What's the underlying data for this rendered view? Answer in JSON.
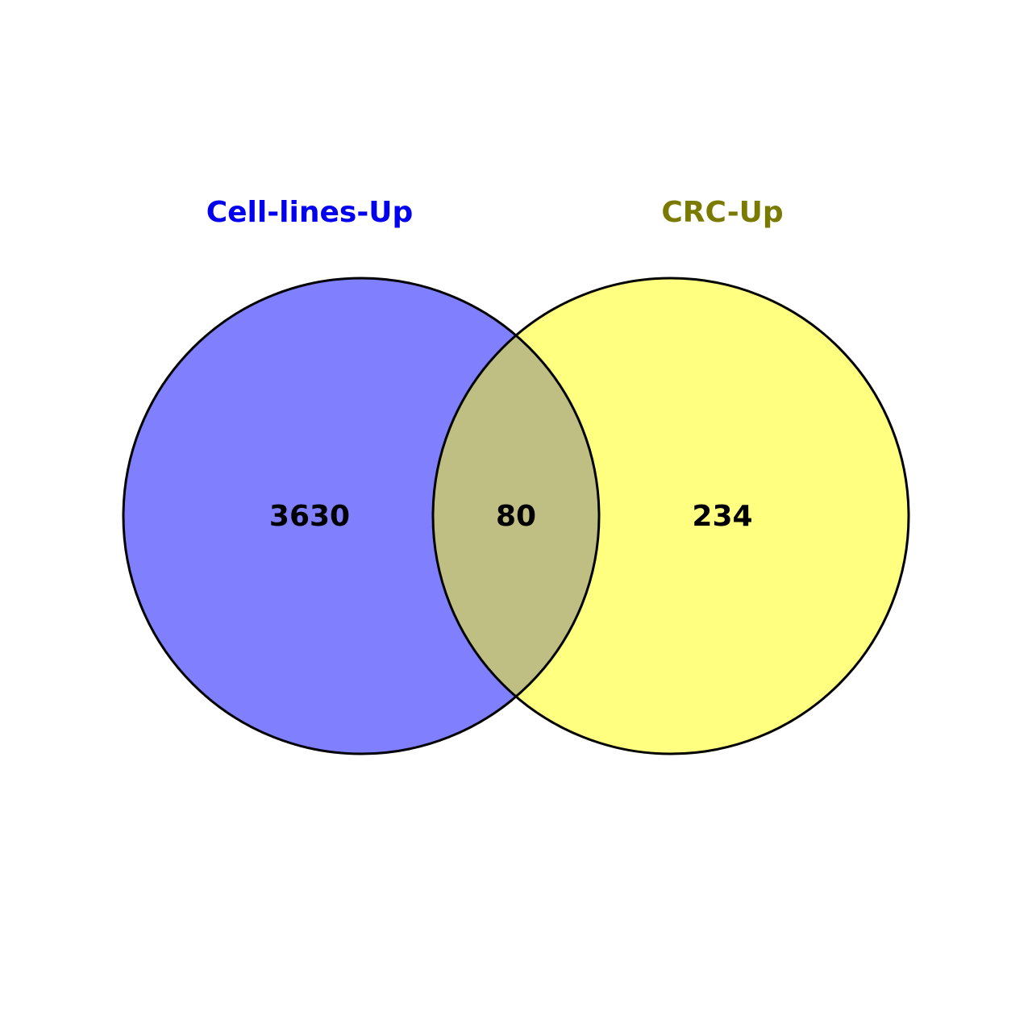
{
  "venn": {
    "sets": [
      {
        "label": "Cell-lines-Up",
        "label_color": "#0000ee",
        "fill_color": "#8080ff",
        "only_count": "3630"
      },
      {
        "label": "CRC-Up",
        "label_color": "#7a7a00",
        "fill_color": "#ffff80",
        "only_count": "234"
      }
    ],
    "intersection": {
      "count": "80",
      "fill_color": "#bfbf84"
    },
    "outline_color": "#000000"
  }
}
